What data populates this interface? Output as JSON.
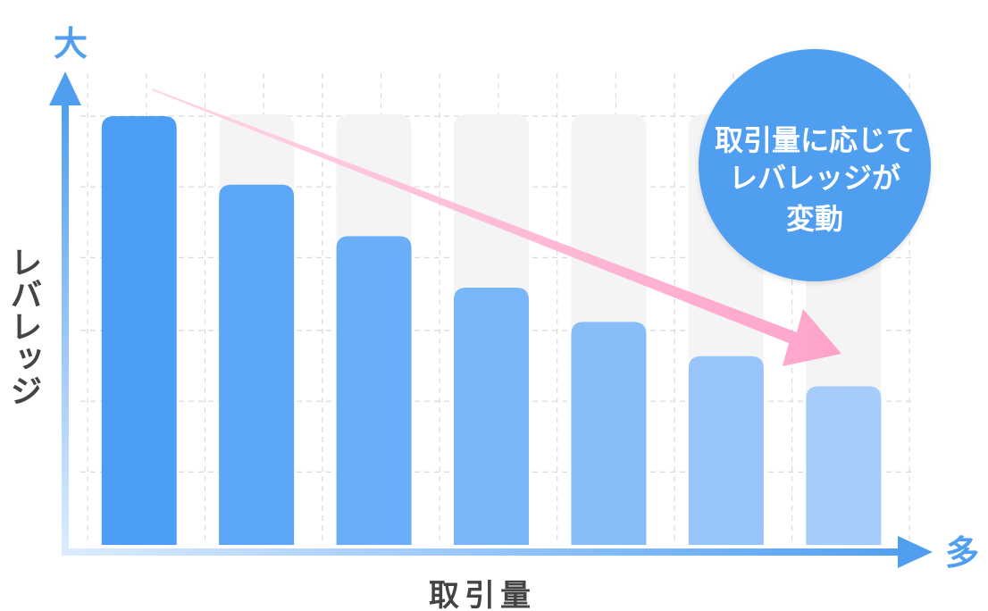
{
  "chart_data": {
    "type": "bar",
    "categories": [
      "",
      "",
      "",
      "",
      "",
      "",
      ""
    ],
    "values": [
      100,
      84,
      72,
      60,
      52,
      44,
      37
    ],
    "ylim": [
      0,
      100
    ],
    "grid": true,
    "xlabel": "取引量",
    "ylabel": "レバレッジ",
    "y_axis_end_label": "大",
    "x_axis_end_label": "多",
    "annotation": {
      "lines": [
        "取引量に応じて",
        "レバレッジが",
        "変動"
      ]
    },
    "trend": "decreasing"
  },
  "colors": {
    "axis": "#4f9ef0",
    "bar_start": "#4c9ef5",
    "bar_end": "#a6cdfa",
    "arrow": "#ff9fc8",
    "callout": "#4f9ef0",
    "text": "#444444"
  }
}
